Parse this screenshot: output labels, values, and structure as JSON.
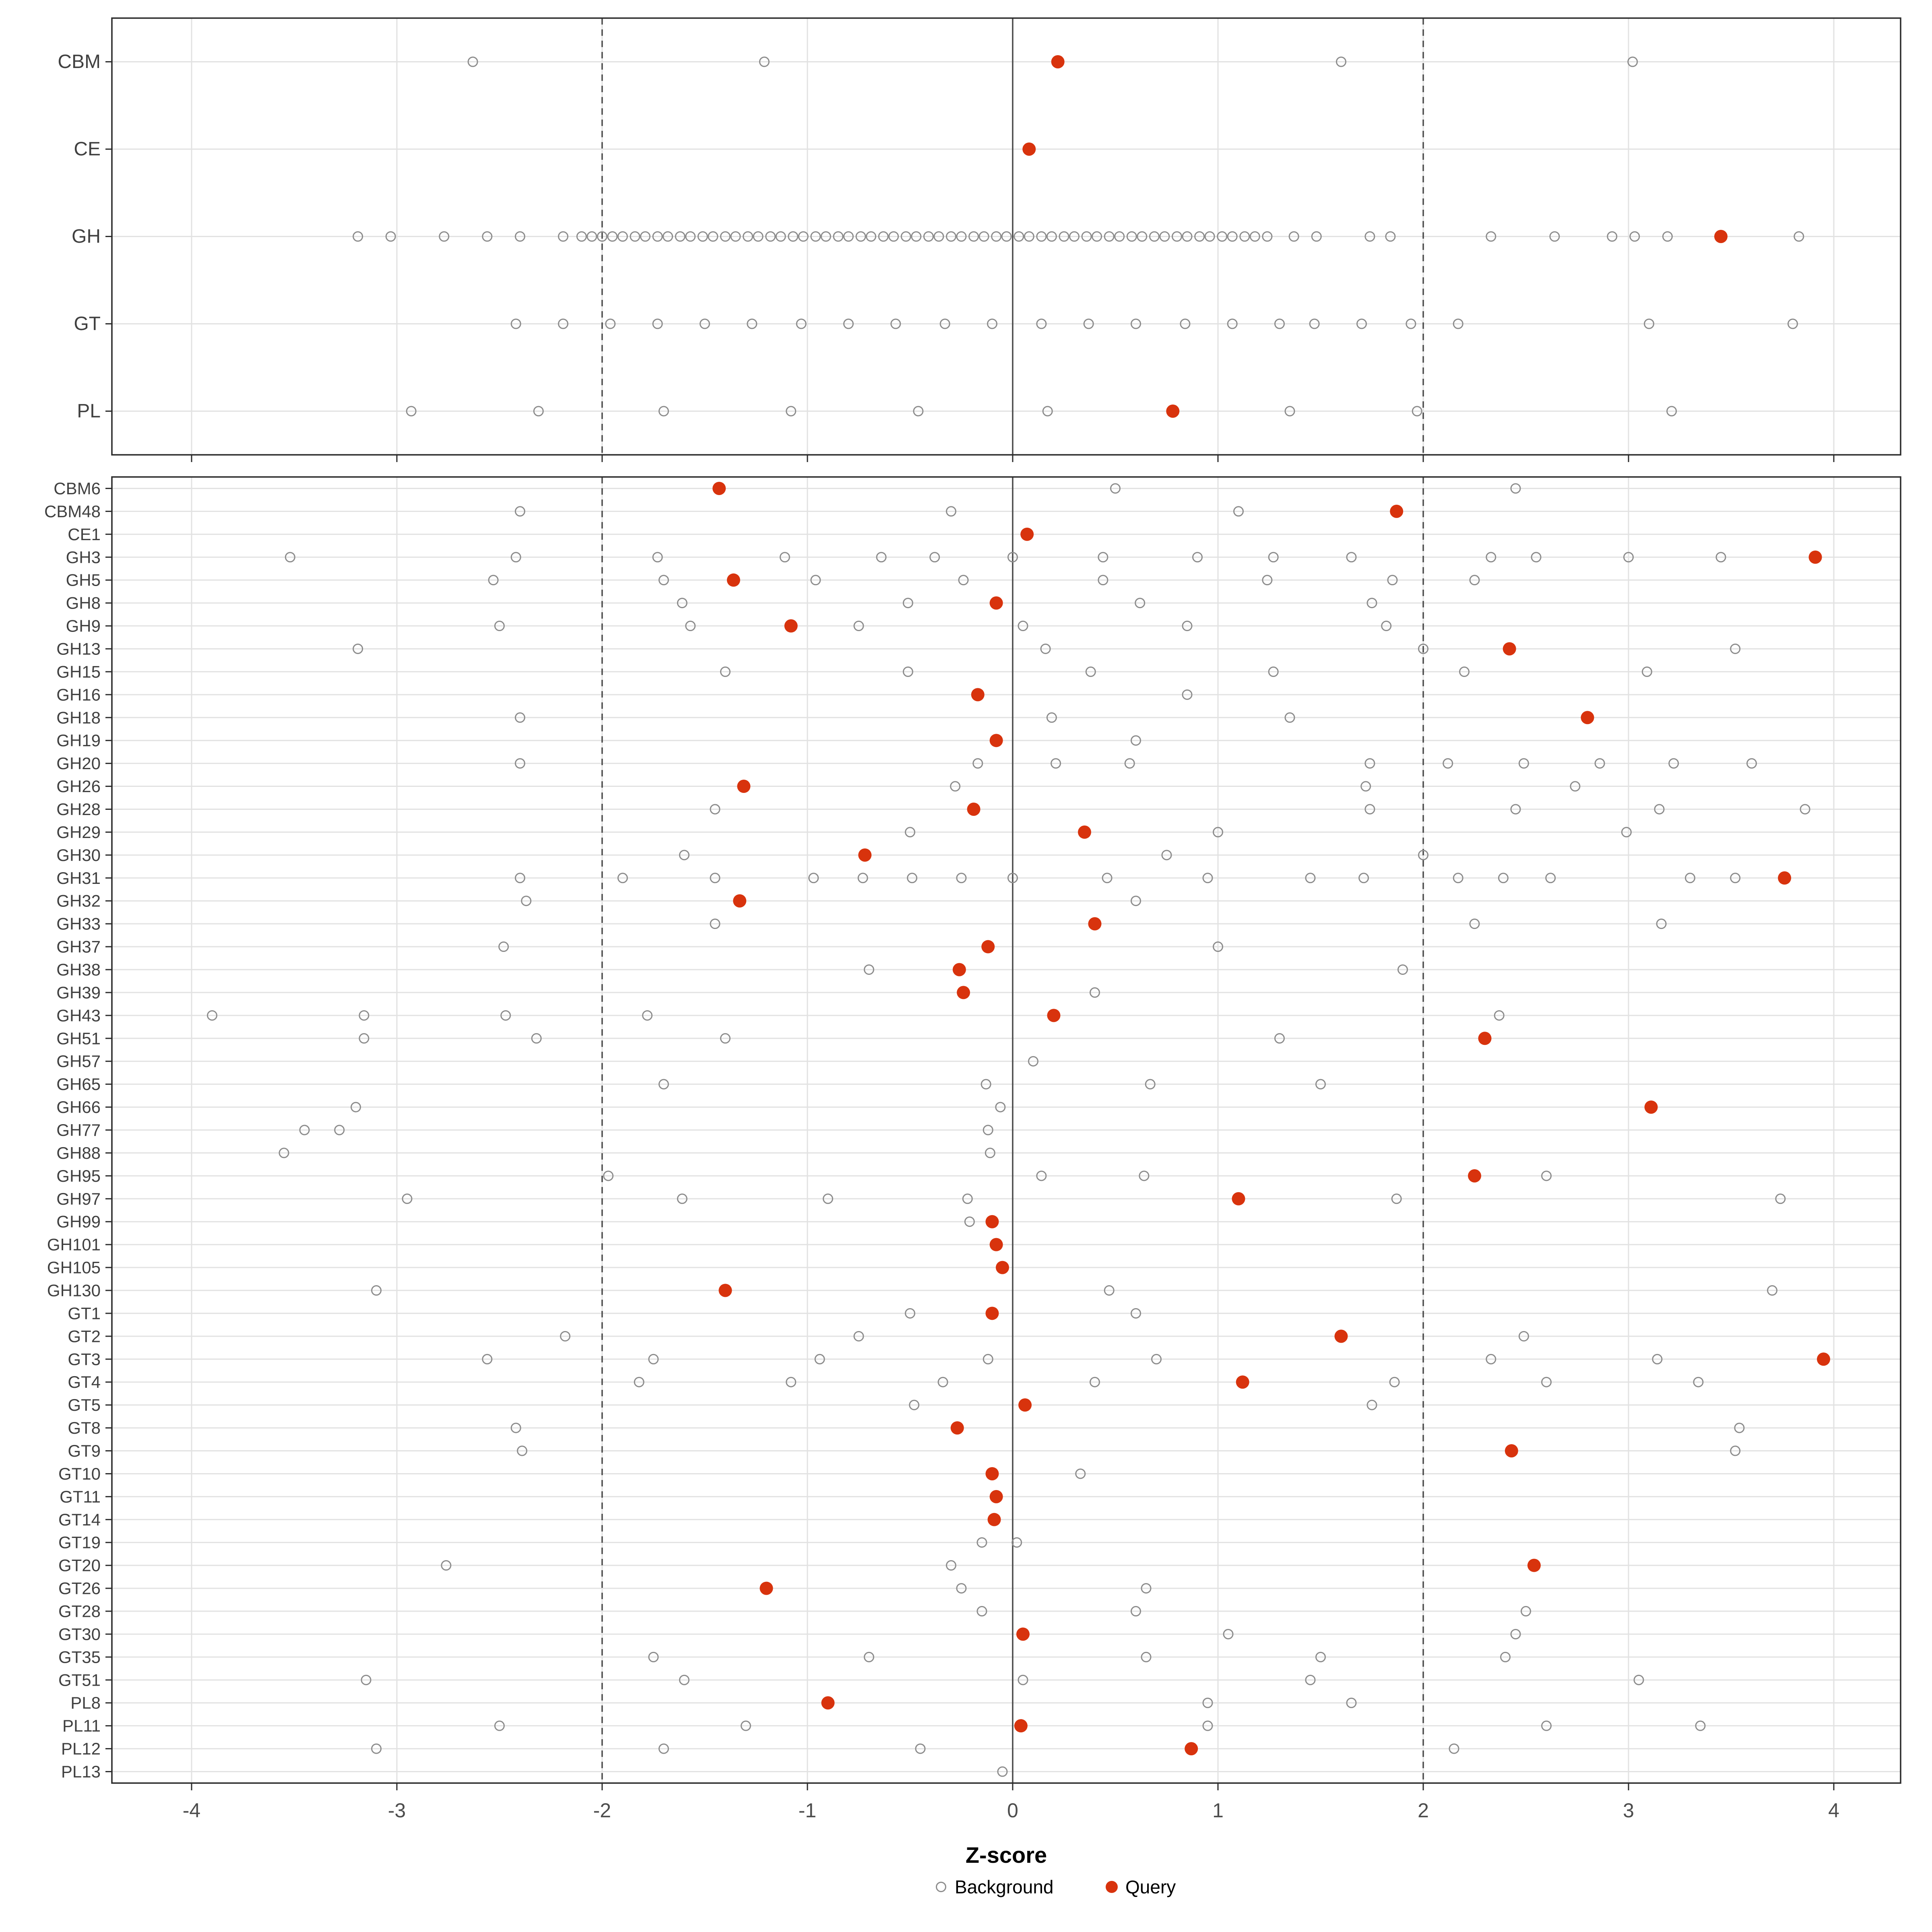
{
  "figure": {
    "xlabel": "Z-score",
    "legend": {
      "background_label": "Background",
      "query_label": "Query"
    }
  },
  "colors": {
    "query": "#D8330D",
    "background_stroke": "#8C8C8C",
    "grid": "#E2E2E2",
    "guide": "#4A4A4A",
    "panel_border": "#2B2B2B",
    "label_text": "#404040",
    "tick_text": "#4D4D4D",
    "background": "#FFFFFF"
  },
  "chart_data": {
    "type": "scatter",
    "title": "",
    "xlabel": "Z-score",
    "ylabel": "",
    "xlim": [
      -4.39,
      4.33
    ],
    "x_ticks": [
      -4,
      -3,
      -2,
      -1,
      0,
      1,
      2,
      3,
      4
    ],
    "grid": true,
    "guide_lines": {
      "solid": 0,
      "dashed": [
        -2,
        2
      ]
    },
    "legend_position": "bottom",
    "series_names": [
      "Background",
      "Query"
    ],
    "panels": [
      {
        "name": "top",
        "rows": [
          {
            "label": "CBM",
            "background": [
              -2.63,
              -1.21,
              1.6,
              3.02
            ],
            "query": 0.22
          },
          {
            "label": "CE",
            "background": [],
            "query": 0.08
          },
          {
            "label": "GH",
            "background": [
              -3.19,
              -3.03,
              -2.77,
              -2.56,
              -2.4,
              -2.19,
              -2.1,
              -2.05,
              -2.0,
              -1.95,
              -1.9,
              -1.84,
              -1.79,
              -1.73,
              -1.68,
              -1.62,
              -1.57,
              -1.51,
              -1.46,
              -1.4,
              -1.35,
              -1.29,
              -1.24,
              -1.18,
              -1.13,
              -1.07,
              -1.02,
              -0.96,
              -0.91,
              -0.85,
              -0.8,
              -0.74,
              -0.69,
              -0.63,
              -0.58,
              -0.52,
              -0.47,
              -0.41,
              -0.36,
              -0.3,
              -0.25,
              -0.19,
              -0.14,
              -0.08,
              -0.03,
              0.03,
              0.08,
              0.14,
              0.19,
              0.25,
              0.3,
              0.36,
              0.41,
              0.47,
              0.52,
              0.58,
              0.63,
              0.69,
              0.74,
              0.8,
              0.85,
              0.91,
              0.96,
              1.02,
              1.07,
              1.13,
              1.18,
              1.24,
              1.37,
              1.48,
              1.74,
              1.84,
              2.33,
              2.64,
              2.92,
              3.03,
              3.19,
              3.83
            ],
            "query": 3.45
          },
          {
            "label": "GT",
            "background": [
              -2.42,
              -2.19,
              -1.96,
              -1.73,
              -1.5,
              -1.27,
              -1.03,
              -0.8,
              -0.57,
              -0.33,
              -0.1,
              0.14,
              0.37,
              0.6,
              0.84,
              1.07,
              1.3,
              1.47,
              1.7,
              1.94,
              2.17,
              3.1,
              3.8
            ],
            "query": null
          },
          {
            "label": "PL",
            "background": [
              -2.93,
              -2.31,
              -1.7,
              -1.08,
              -0.46,
              0.17,
              1.35,
              1.97,
              3.21
            ],
            "query": 0.78
          }
        ]
      },
      {
        "name": "bottom",
        "rows": [
          {
            "label": "CBM6",
            "background": [
              0.5,
              2.45
            ],
            "query": -1.43
          },
          {
            "label": "CBM48",
            "background": [
              -2.4,
              -0.3,
              1.1
            ],
            "query": 1.87
          },
          {
            "label": "CE1",
            "background": [],
            "query": 0.07
          },
          {
            "label": "GH3",
            "background": [
              -3.52,
              -2.42,
              -1.73,
              -1.11,
              -0.64,
              -0.38,
              0.0,
              0.44,
              0.9,
              1.27,
              1.65,
              2.33,
              2.55,
              3.0,
              3.45
            ],
            "query": 3.91
          },
          {
            "label": "GH5",
            "background": [
              -2.53,
              -1.7,
              -0.96,
              -0.24,
              0.44,
              1.24,
              1.85,
              2.25
            ],
            "query": -1.36
          },
          {
            "label": "GH8",
            "background": [
              -1.61,
              -0.51,
              0.62,
              1.75
            ],
            "query": -0.08
          },
          {
            "label": "GH9",
            "background": [
              -2.5,
              -1.57,
              -0.75,
              0.05,
              0.85,
              1.82
            ],
            "query": -1.08
          },
          {
            "label": "GH13",
            "background": [
              -3.19,
              0.16,
              2.0,
              3.52
            ],
            "query": 2.42
          },
          {
            "label": "GH15",
            "background": [
              -1.4,
              -0.51,
              0.38,
              1.27,
              2.2,
              3.09
            ],
            "query": null
          },
          {
            "label": "GH16",
            "background": [
              0.85
            ],
            "query": -0.17
          },
          {
            "label": "GH18",
            "background": [
              -2.4,
              0.19,
              1.35
            ],
            "query": 2.8
          },
          {
            "label": "GH19",
            "background": [
              0.6
            ],
            "query": -0.08
          },
          {
            "label": "GH20",
            "background": [
              -2.4,
              -0.17,
              0.21,
              0.57,
              1.74,
              2.12,
              2.49,
              2.86,
              3.22,
              3.6
            ],
            "query": null
          },
          {
            "label": "GH26",
            "background": [
              -0.28,
              1.72,
              2.74
            ],
            "query": -1.31
          },
          {
            "label": "GH28",
            "background": [
              -1.45,
              1.74,
              2.45,
              3.15,
              3.86
            ],
            "query": -0.19
          },
          {
            "label": "GH29",
            "background": [
              -0.5,
              1.0,
              2.99
            ],
            "query": 0.35
          },
          {
            "label": "GH30",
            "background": [
              -1.6,
              0.75,
              2.0
            ],
            "query": -0.72
          },
          {
            "label": "GH31",
            "background": [
              -2.4,
              -1.9,
              -1.45,
              -0.97,
              -0.73,
              -0.49,
              -0.25,
              0.0,
              0.46,
              0.95,
              1.45,
              1.71,
              2.17,
              2.39,
              2.62,
              3.3,
              3.52
            ],
            "query": 3.76
          },
          {
            "label": "GH32",
            "background": [
              -2.37,
              0.6
            ],
            "query": -1.33
          },
          {
            "label": "GH33",
            "background": [
              -1.45,
              2.25,
              3.16
            ],
            "query": 0.4
          },
          {
            "label": "GH37",
            "background": [
              -2.48,
              1.0
            ],
            "query": -0.12
          },
          {
            "label": "GH38",
            "background": [
              -0.7,
              1.9
            ],
            "query": -0.26
          },
          {
            "label": "GH39",
            "background": [
              0.4
            ],
            "query": -0.24
          },
          {
            "label": "GH43",
            "background": [
              -3.9,
              -3.16,
              -2.47,
              -1.78,
              2.37
            ],
            "query": 0.2
          },
          {
            "label": "GH51",
            "background": [
              -3.16,
              -2.32,
              -1.4,
              1.3
            ],
            "query": 2.3
          },
          {
            "label": "GH57",
            "background": [
              0.1
            ],
            "query": null
          },
          {
            "label": "GH65",
            "background": [
              -1.7,
              -0.13,
              0.67,
              1.5
            ],
            "query": null
          },
          {
            "label": "GH66",
            "background": [
              -3.2,
              -0.06
            ],
            "query": 3.11
          },
          {
            "label": "GH77",
            "background": [
              -3.45,
              -3.28,
              -0.12
            ],
            "query": null
          },
          {
            "label": "GH88",
            "background": [
              -3.55,
              -0.11
            ],
            "query": null
          },
          {
            "label": "GH95",
            "background": [
              -1.97,
              0.14,
              0.64,
              2.6
            ],
            "query": 2.25
          },
          {
            "label": "GH97",
            "background": [
              -2.95,
              -1.61,
              -0.9,
              -0.22,
              1.87,
              3.74
            ],
            "query": 1.1
          },
          {
            "label": "GH99",
            "background": [
              -0.21
            ],
            "query": -0.1
          },
          {
            "label": "GH101",
            "background": [],
            "query": -0.08
          },
          {
            "label": "GH105",
            "background": [],
            "query": -0.05
          },
          {
            "label": "GH130",
            "background": [
              -3.1,
              0.47,
              3.7
            ],
            "query": -1.4
          },
          {
            "label": "GT1",
            "background": [
              -0.5,
              0.6
            ],
            "query": -0.1
          },
          {
            "label": "GT2",
            "background": [
              -2.18,
              -0.75,
              2.49
            ],
            "query": 1.6
          },
          {
            "label": "GT3",
            "background": [
              -2.56,
              -1.75,
              -0.94,
              -0.12,
              0.7,
              2.33,
              3.14
            ],
            "query": 3.95
          },
          {
            "label": "GT4",
            "background": [
              -1.82,
              -1.08,
              -0.34,
              0.4,
              1.86,
              2.6,
              3.34
            ],
            "query": 1.12
          },
          {
            "label": "GT5",
            "background": [
              -0.48,
              1.75
            ],
            "query": 0.06
          },
          {
            "label": "GT8",
            "background": [
              -2.42,
              3.54
            ],
            "query": -0.27
          },
          {
            "label": "GT9",
            "background": [
              -2.39,
              3.52
            ],
            "query": 2.43
          },
          {
            "label": "GT10",
            "background": [
              0.33
            ],
            "query": -0.1
          },
          {
            "label": "GT11",
            "background": [],
            "query": -0.08
          },
          {
            "label": "GT14",
            "background": [],
            "query": -0.09
          },
          {
            "label": "GT19",
            "background": [
              -0.15,
              0.02
            ],
            "query": null
          },
          {
            "label": "GT20",
            "background": [
              -2.76,
              -0.3
            ],
            "query": 2.54
          },
          {
            "label": "GT26",
            "background": [
              -0.25,
              0.65
            ],
            "query": -1.2
          },
          {
            "label": "GT28",
            "background": [
              -0.15,
              0.6,
              2.5
            ],
            "query": null
          },
          {
            "label": "GT30",
            "background": [
              1.05,
              2.45
            ],
            "query": 0.05
          },
          {
            "label": "GT35",
            "background": [
              -1.75,
              -0.7,
              0.65,
              1.5,
              2.4
            ],
            "query": null
          },
          {
            "label": "GT51",
            "background": [
              -3.15,
              -1.6,
              0.05,
              1.45,
              3.05
            ],
            "query": null
          },
          {
            "label": "PL8",
            "background": [
              0.95,
              1.65
            ],
            "query": -0.9
          },
          {
            "label": "PL11",
            "background": [
              -2.5,
              -1.3,
              0.95,
              2.6,
              3.35
            ],
            "query": 0.04
          },
          {
            "label": "PL12",
            "background": [
              -3.1,
              -1.7,
              -0.45,
              2.15
            ],
            "query": 0.87
          },
          {
            "label": "PL13",
            "background": [
              -0.05
            ],
            "query": null
          }
        ]
      }
    ]
  }
}
